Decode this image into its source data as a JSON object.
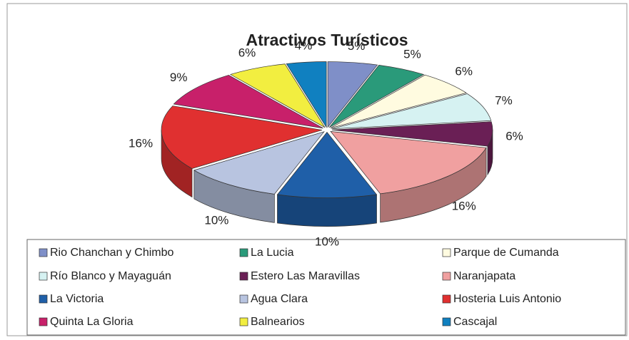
{
  "chart_data": {
    "type": "pie",
    "title": "Atractivos Turísticos",
    "categories": [
      "Rio Chanchan y Chimbo",
      "La Lucia",
      "Parque de Cumanda",
      "Río Blanco y Mayaguán",
      "Estero Las Maravillas",
      "Naranjapata",
      "La Victoria",
      "Agua Clara",
      "Hosteria Luis Antonio",
      "Quinta La Gloria",
      "Balnearios",
      "Cascajal"
    ],
    "values": [
      5,
      5,
      6,
      7,
      6,
      16,
      10,
      10,
      16,
      9,
      6,
      4
    ],
    "value_labels": [
      "5%",
      "5%",
      "6%",
      "7%",
      "6%",
      "16%",
      "10%",
      "10%",
      "16%",
      "9%",
      "6%",
      "4%"
    ],
    "colors": [
      "#7f8fc8",
      "#2a9a7a",
      "#fffbe0",
      "#d6f2f2",
      "#6a1f55",
      "#f0a0a0",
      "#1f5fa8",
      "#b8c4e0",
      "#e03030",
      "#c8206a",
      "#f2ee40",
      "#1080c0"
    ],
    "legend": "bottom"
  }
}
